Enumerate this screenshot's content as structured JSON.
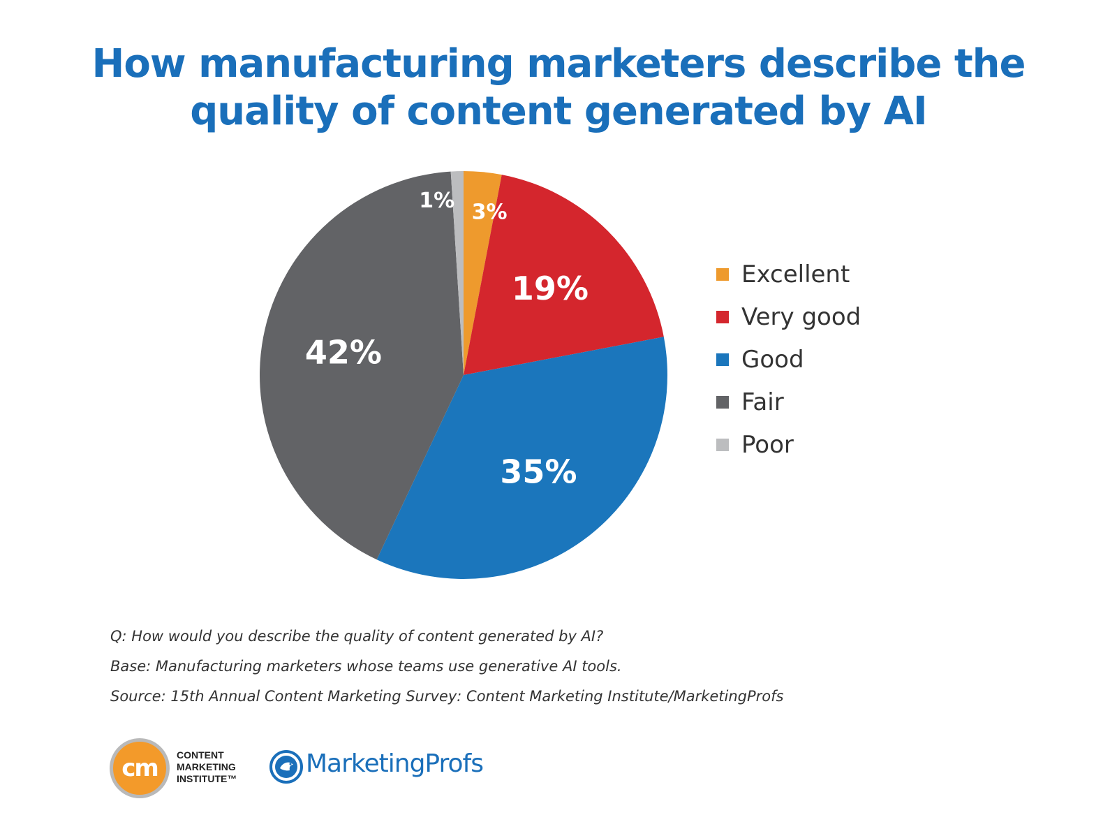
{
  "title": "How manufacturing marketers describe the quality of content generated by AI",
  "chart_data": {
    "type": "pie",
    "title": "How manufacturing marketers describe the quality of content generated by AI",
    "unit": "%",
    "start": "12 o'clock",
    "direction": "clockwise",
    "categories": [
      "Excellent",
      "Very good",
      "Good",
      "Fair",
      "Poor"
    ],
    "values": [
      3,
      19,
      35,
      42,
      1
    ],
    "labels": [
      "3%",
      "19%",
      "35%",
      "42%",
      "1%"
    ],
    "colors": [
      "#ee9a2d",
      "#d4262d",
      "#1b76bc",
      "#626366",
      "#bcbdbf"
    ],
    "legend": "right"
  },
  "notes": {
    "question": "Q: How would you describe the quality of content generated by AI?",
    "base": "Base: Manufacturing marketers whose teams use generative AI tools.",
    "source": "Source: 15th Annual Content Marketing Survey: Content Marketing Institute/MarketingProfs"
  },
  "logos": {
    "cmi_mark": "cm",
    "cmi_line1": "CONTENT",
    "cmi_line2": "MARKETING",
    "cmi_line3": "INSTITUTE™",
    "marketingprofs": "MarketingProfs"
  }
}
